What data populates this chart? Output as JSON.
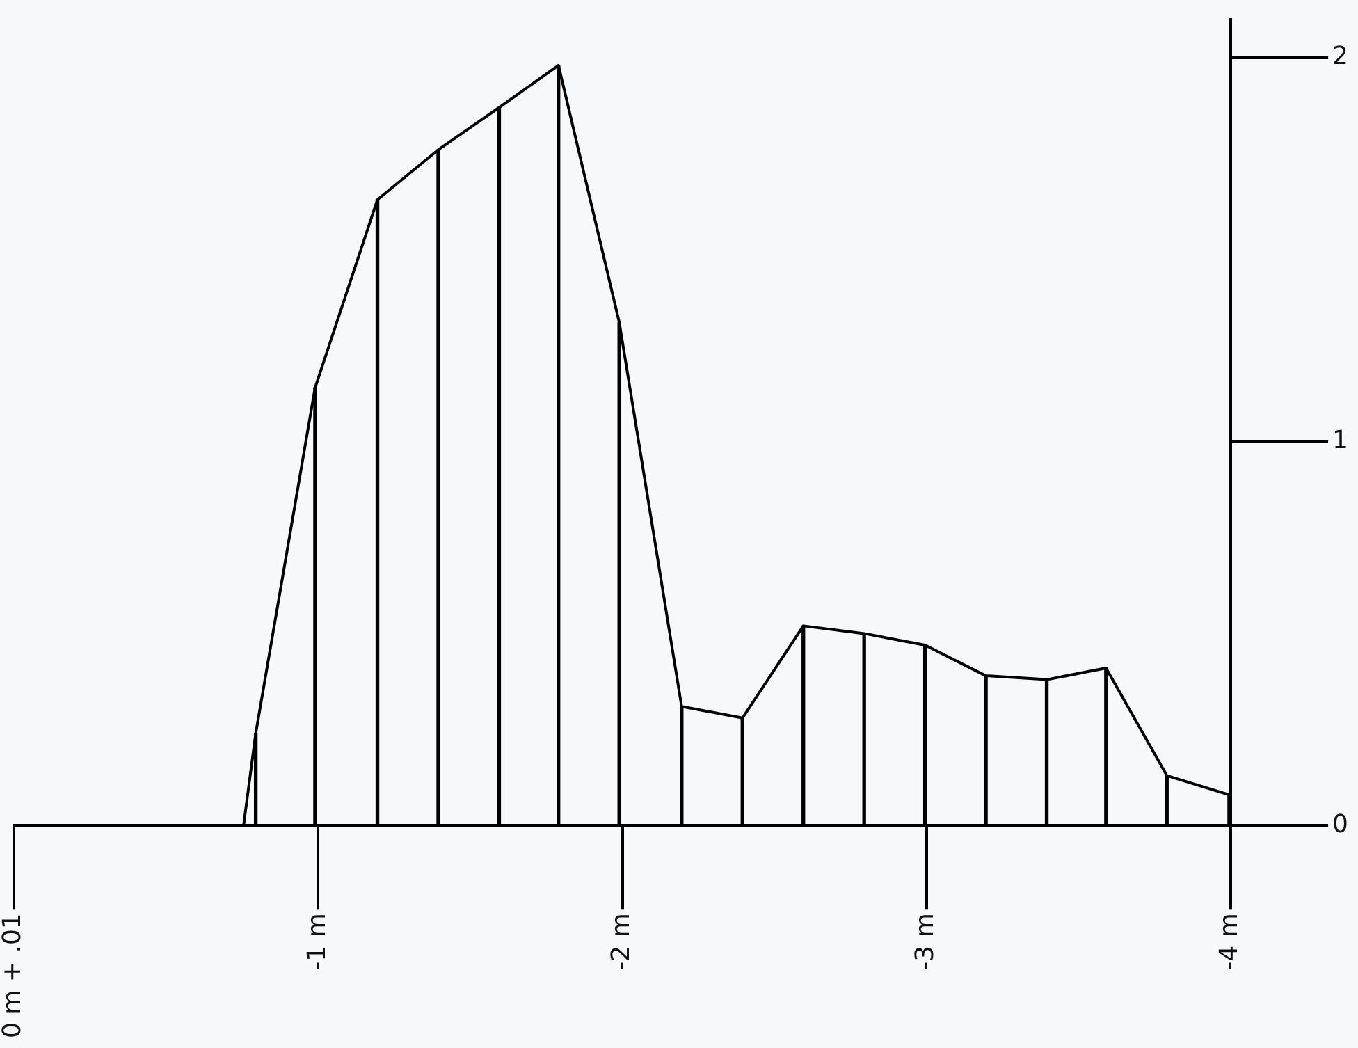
{
  "chart_data": {
    "type": "line",
    "x": [
      -0.755,
      -0.795,
      -0.99,
      -1.195,
      -1.395,
      -1.595,
      -1.79,
      -1.99,
      -2.195,
      -2.395,
      -2.595,
      -2.795,
      -2.995,
      -3.195,
      -3.395,
      -3.59,
      -3.79,
      -3.995
    ],
    "series": [
      {
        "color": "#000000",
        "values": [
          0,
          0.24,
          1.14,
          1.63,
          1.76,
          1.87,
          1.98,
          1.31,
          0.31,
          0.28,
          0.52,
          0.5,
          0.47,
          0.39,
          0.38,
          0.41,
          0.13,
          0.08
        ]
      },
      {
        "type": "bar",
        "color": "#000000",
        "x": [
          -0.795,
          -0.99,
          -1.195,
          -1.395,
          -1.595,
          -1.79,
          -1.99,
          -2.195,
          -2.395,
          -2.595,
          -2.795,
          -2.995,
          -3.195,
          -3.395,
          -3.59,
          -3.79,
          -3.995
        ],
        "values": [
          0.24,
          1.14,
          1.63,
          1.76,
          1.87,
          1.98,
          1.31,
          0.31,
          0.28,
          0.52,
          0.5,
          0.47,
          0.39,
          0.38,
          0.41,
          0.13,
          0.08
        ]
      }
    ],
    "xlim": [
      0,
      -4
    ],
    "xticks": [
      {
        "value": 0,
        "label": "0 m + .01"
      },
      {
        "value": -1,
        "label": "-1 m"
      },
      {
        "value": -2,
        "label": "-2 m"
      },
      {
        "value": -3,
        "label": "-3 m"
      },
      {
        "value": -4,
        "label": "-4 m"
      }
    ],
    "ylim": [
      0,
      2.1
    ],
    "yticks": [
      0,
      1,
      2
    ],
    "marker": "none",
    "line_style": "solid",
    "grid": false,
    "legend": false
  }
}
